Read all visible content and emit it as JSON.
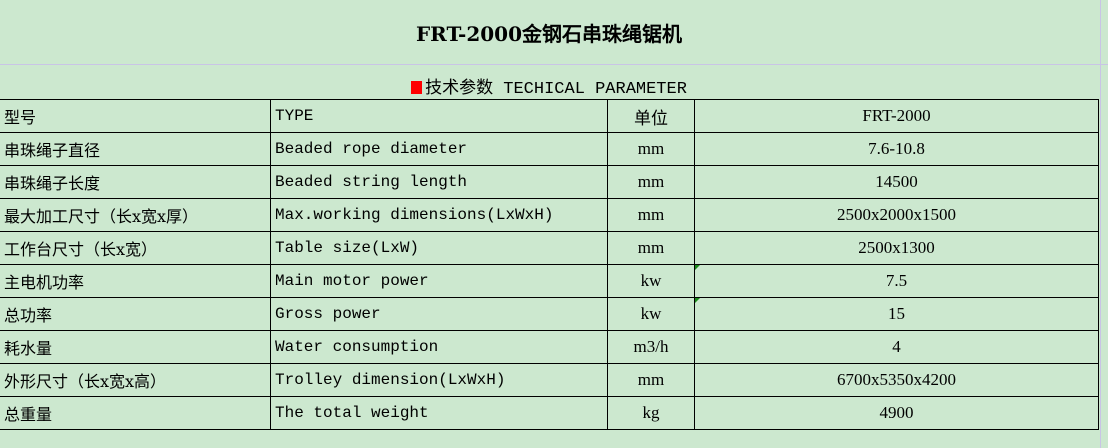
{
  "title": "FRT-2000金钢石串珠绳锯机",
  "subtitle": "技术参数 TECHICAL PARAMETER",
  "colors": {
    "background": "#cce8cf",
    "marker": "#ff0000"
  },
  "rows": [
    {
      "cn": "型号",
      "en": "TYPE",
      "unit": "单位",
      "value": "FRT-2000"
    },
    {
      "cn": "串珠绳子直径",
      "en": "Beaded rope diameter",
      "unit": "mm",
      "value": "7.6-10.8"
    },
    {
      "cn": "串珠绳子长度",
      "en": "Beaded string length",
      "unit": "mm",
      "value": "14500"
    },
    {
      "cn": "最大加工尺寸（长x宽x厚）",
      "en": "Max.working dimensions(LxWxH)",
      "unit": "mm",
      "value": "2500x2000x1500"
    },
    {
      "cn": "工作台尺寸（长x宽）",
      "en": "Table size(LxW)",
      "unit": "mm",
      "value": "2500x1300"
    },
    {
      "cn": "主电机功率",
      "en": "Main motor power",
      "unit": "kw",
      "value": "7.5"
    },
    {
      "cn": "总功率",
      "en": "Gross power",
      "unit": "kw",
      "value": "15"
    },
    {
      "cn": "耗水量",
      "en": "Water consumption",
      "unit": "m3/h",
      "value": "4"
    },
    {
      "cn": "外形尺寸（长x宽x高）",
      "en": "Trolley dimension(LxWxH)",
      "unit": "mm",
      "value": "6700x5350x4200"
    },
    {
      "cn": "总重量",
      "en": "The total weight",
      "unit": "kg",
      "value": "4900"
    }
  ]
}
